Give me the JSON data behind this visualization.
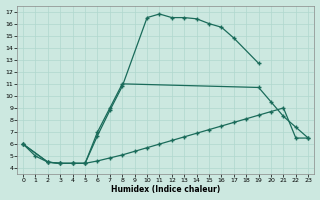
{
  "xlabel": "Humidex (Indice chaleur)",
  "bg_color": "#cce8e0",
  "grid_color": "#b0d8ce",
  "line_color": "#1a6b5a",
  "xlim": [
    -0.5,
    23.5
  ],
  "ylim": [
    3.5,
    17.5
  ],
  "xticks": [
    0,
    1,
    2,
    3,
    4,
    5,
    6,
    7,
    8,
    9,
    10,
    11,
    12,
    13,
    14,
    15,
    16,
    17,
    18,
    19,
    20,
    21,
    22,
    23
  ],
  "yticks": [
    4,
    5,
    6,
    7,
    8,
    9,
    10,
    11,
    12,
    13,
    14,
    15,
    16,
    17
  ],
  "curve_top_x": [
    0,
    2,
    3,
    4,
    5,
    6,
    7,
    8,
    10,
    11,
    12,
    13,
    14,
    15,
    16,
    17,
    19
  ],
  "curve_top_y": [
    6.0,
    4.5,
    4.4,
    4.4,
    4.4,
    6.7,
    8.8,
    10.8,
    16.5,
    16.8,
    16.5,
    16.5,
    16.4,
    16.0,
    15.7,
    14.8,
    12.7
  ],
  "curve_mid_x": [
    0,
    1,
    2,
    3,
    4,
    5,
    6,
    7,
    8,
    19,
    20,
    21,
    22,
    23
  ],
  "curve_mid_y": [
    6.0,
    5.0,
    4.5,
    4.4,
    4.4,
    4.4,
    7.0,
    9.0,
    11.0,
    10.7,
    9.5,
    8.3,
    7.4,
    6.5
  ],
  "curve_bot_x": [
    0,
    2,
    3,
    4,
    5,
    6,
    7,
    8,
    9,
    10,
    11,
    12,
    13,
    14,
    15,
    16,
    17,
    18,
    19,
    20,
    21,
    22,
    23
  ],
  "curve_bot_y": [
    6.0,
    4.5,
    4.4,
    4.4,
    4.4,
    4.6,
    4.85,
    5.1,
    5.4,
    5.7,
    6.0,
    6.3,
    6.6,
    6.9,
    7.2,
    7.5,
    7.8,
    8.1,
    8.4,
    8.7,
    9.0,
    6.5,
    6.5
  ]
}
